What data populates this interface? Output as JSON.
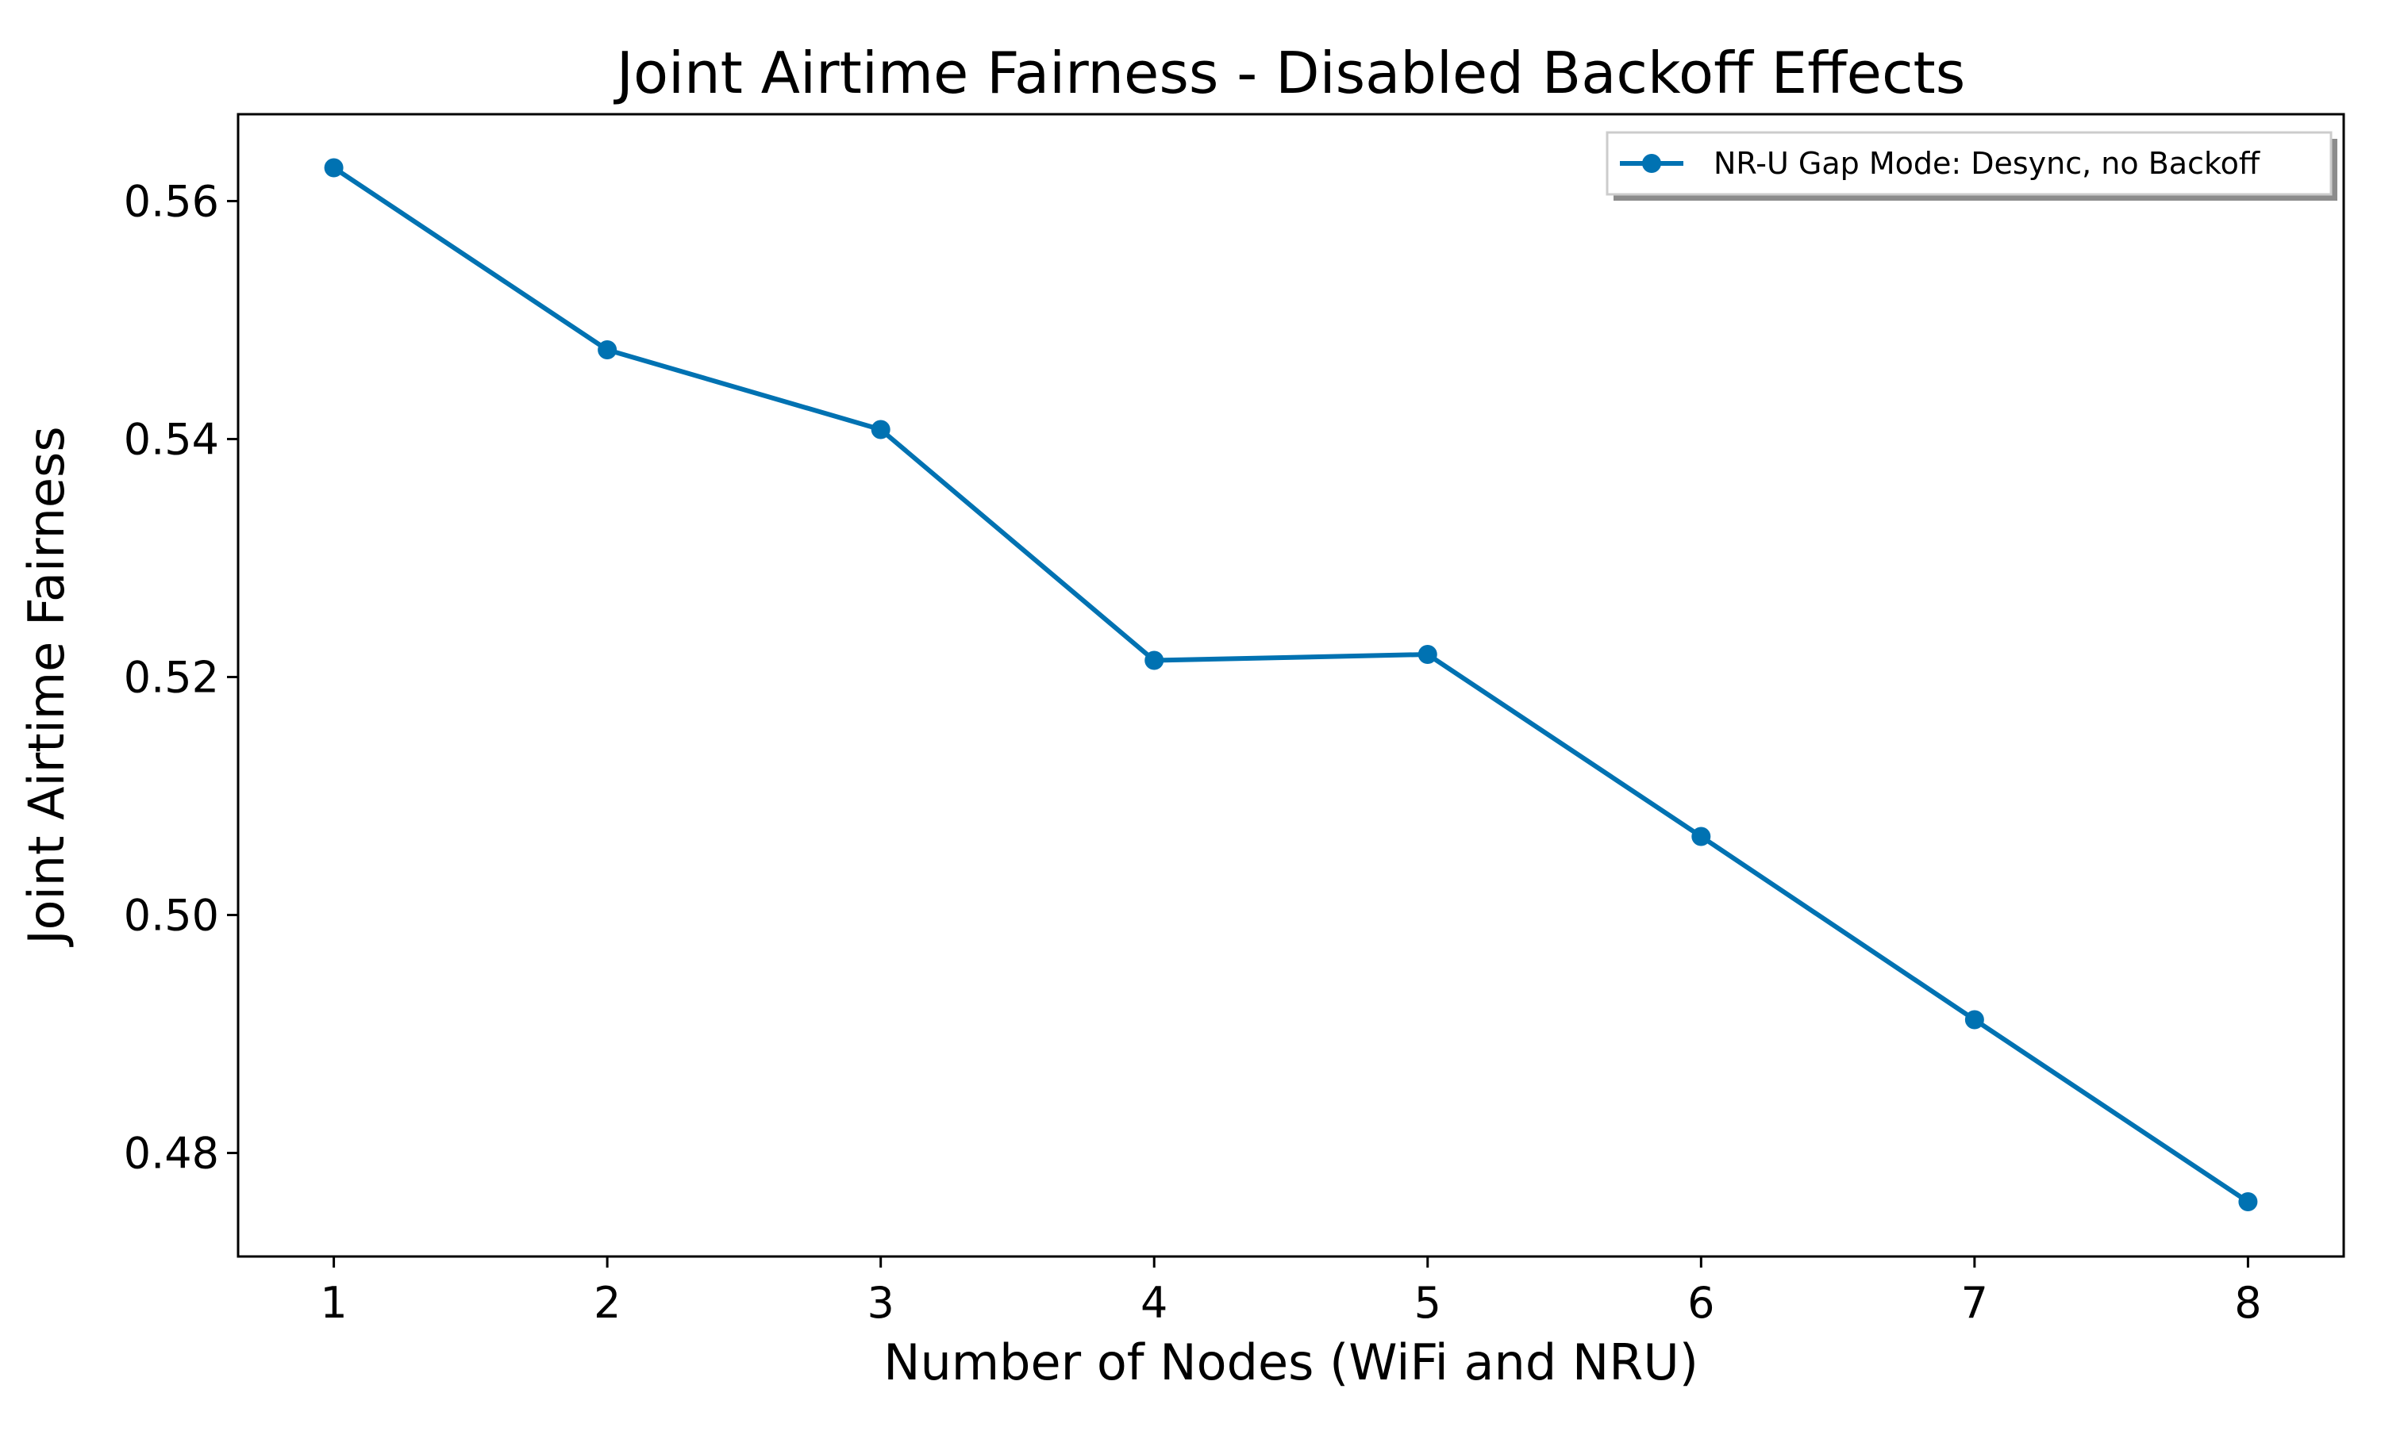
{
  "chart_data": {
    "type": "line",
    "title": "Joint Airtime Fairness - Disabled Backoff Effects",
    "xlabel": "Number of Nodes (WiFi and NRU)",
    "ylabel": "Joint Airtime Fairness",
    "x": [
      1,
      2,
      3,
      4,
      5,
      6,
      7,
      8
    ],
    "xlim": [
      0.65,
      8.35
    ],
    "ylim": [
      0.4713,
      0.5673
    ],
    "xticks": [
      1,
      2,
      3,
      4,
      5,
      6,
      7,
      8
    ],
    "xtick_labels": [
      "1",
      "2",
      "3",
      "4",
      "5",
      "6",
      "7",
      "8"
    ],
    "yticks": [
      0.48,
      0.5,
      0.52,
      0.54,
      0.56
    ],
    "ytick_labels": [
      "0.48",
      "0.50",
      "0.52",
      "0.54",
      "0.56"
    ],
    "grid": false,
    "legend_position": "top-right",
    "series": [
      {
        "name": "NR-U Gap Mode: Desync, no Backoff",
        "color": "#0072b2",
        "marker": "circle",
        "values": [
          0.5628,
          0.5475,
          0.5408,
          0.5214,
          0.5219,
          0.5066,
          0.4912,
          0.4759
        ]
      }
    ]
  }
}
